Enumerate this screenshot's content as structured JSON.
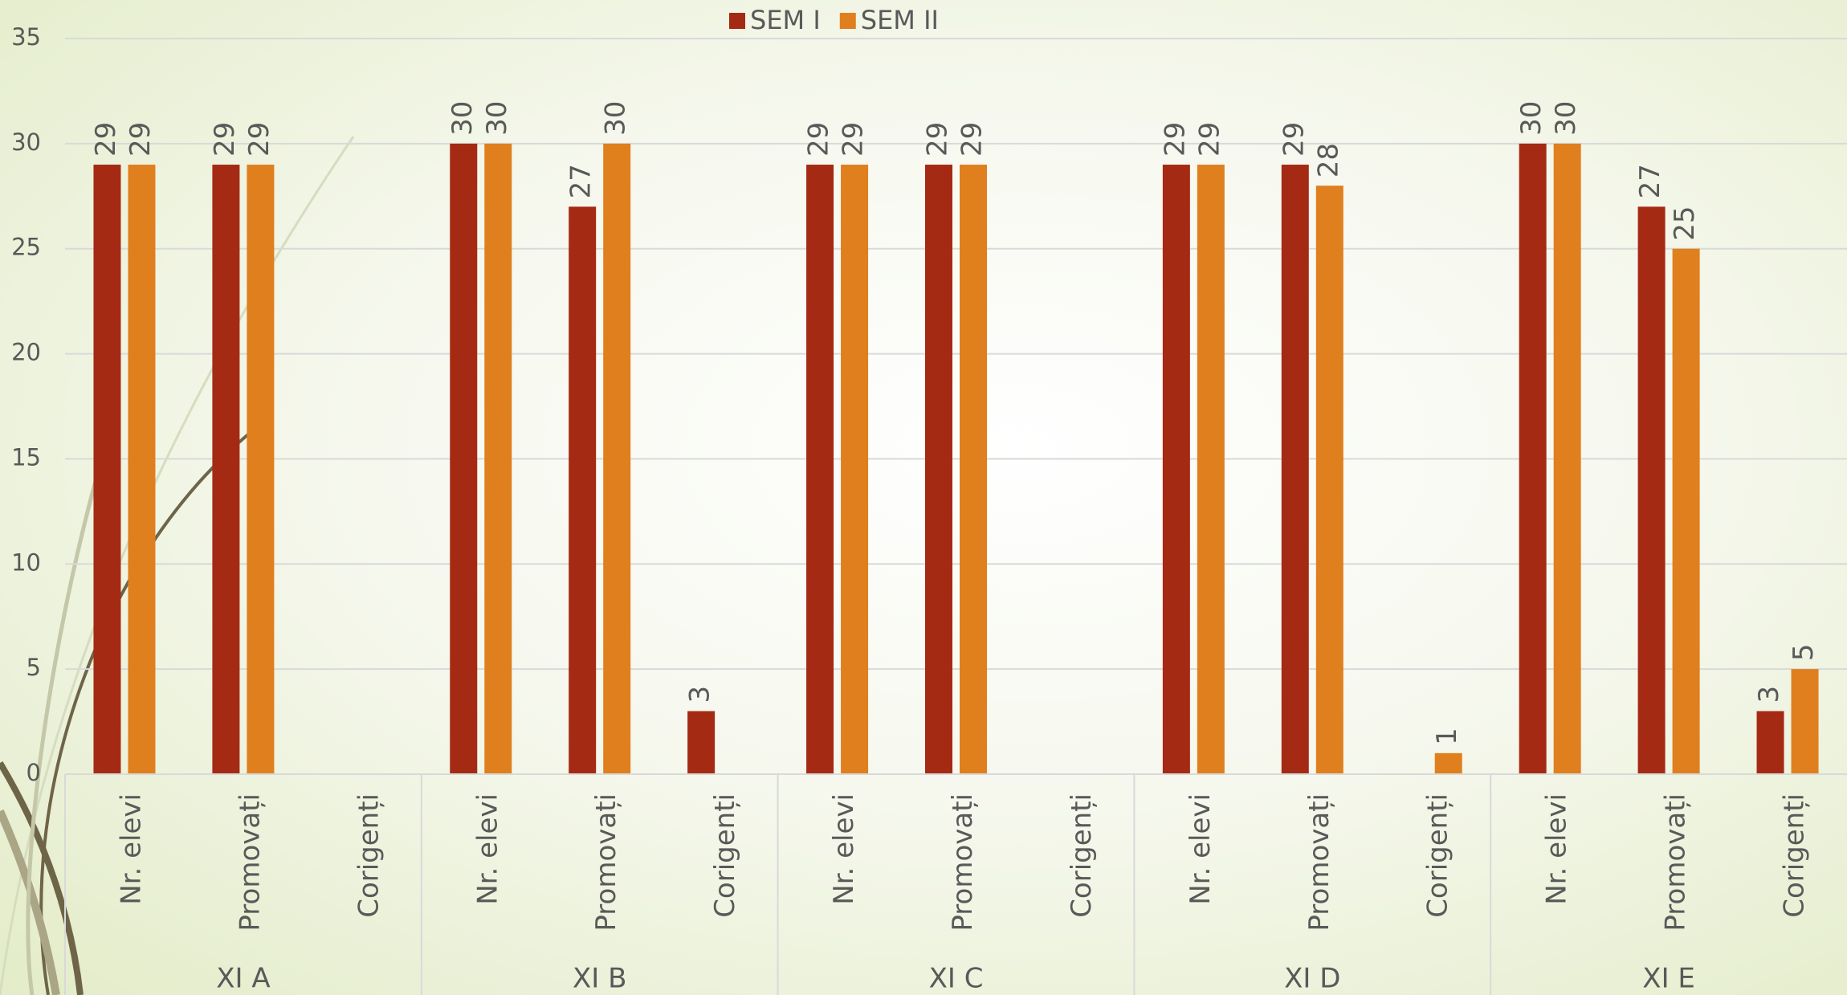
{
  "chart_data": {
    "type": "grouped-bar",
    "groups": [
      {
        "name": "XI A",
        "categories": [
          "Nr. elevi",
          "Promovați",
          "Corigenți"
        ]
      },
      {
        "name": "XI B",
        "categories": [
          "Nr. elevi",
          "Promovați",
          "Corigenți"
        ]
      },
      {
        "name": "XI C",
        "categories": [
          "Nr. elevi",
          "Promovați",
          "Corigenți"
        ]
      },
      {
        "name": "XI D",
        "categories": [
          "Nr. elevi",
          "Promovați",
          "Corigenți"
        ]
      },
      {
        "name": "XI E",
        "categories": [
          "Nr. elevi",
          "Promovați",
          "Corigenți"
        ]
      }
    ],
    "series": [
      {
        "name": "SEM I",
        "color": "#a52a14",
        "values": [
          29,
          29,
          null,
          30,
          27,
          3,
          29,
          29,
          null,
          29,
          29,
          null,
          30,
          27,
          3
        ]
      },
      {
        "name": "SEM II",
        "color": "#e07f1e",
        "values": [
          29,
          29,
          null,
          30,
          30,
          null,
          29,
          29,
          null,
          29,
          28,
          1,
          30,
          25,
          5
        ]
      }
    ],
    "ylim": [
      0,
      35
    ],
    "yticks": [
      0,
      5,
      10,
      15,
      20,
      25,
      30,
      35
    ],
    "grid": true,
    "legend": "top"
  }
}
